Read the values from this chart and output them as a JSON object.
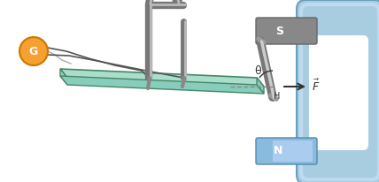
{
  "bg_color": "#ffffff",
  "clamp_color": "#a8cce0",
  "clamp_mid": "#bedaf0",
  "clamp_edge": "#6aa0be",
  "clamp_dark": "#558899",
  "magnet_S_color": "#888888",
  "magnet_S_edge": "#666666",
  "magnet_N_color": "#88bbdd",
  "magnet_N_light": "#aaccee",
  "magnet_N_edge": "#5588aa",
  "magnet_label_S": "S",
  "magnet_label_N": "N",
  "table_top_color": "#aaddcc",
  "table_side_color": "#88ccbb",
  "table_front_color": "#99ccbb",
  "table_edge": "#448866",
  "wire_color": "#888888",
  "wire_highlight": "#bbbbbb",
  "generator_color": "#f5a030",
  "generator_edge": "#cc7700",
  "generator_label": "G",
  "conductor_color": "#999999",
  "conductor_highlight": "#cccccc",
  "theta_label": "θ",
  "H_label": "H",
  "arrow_color": "#333333",
  "dashed_color": "#888888"
}
